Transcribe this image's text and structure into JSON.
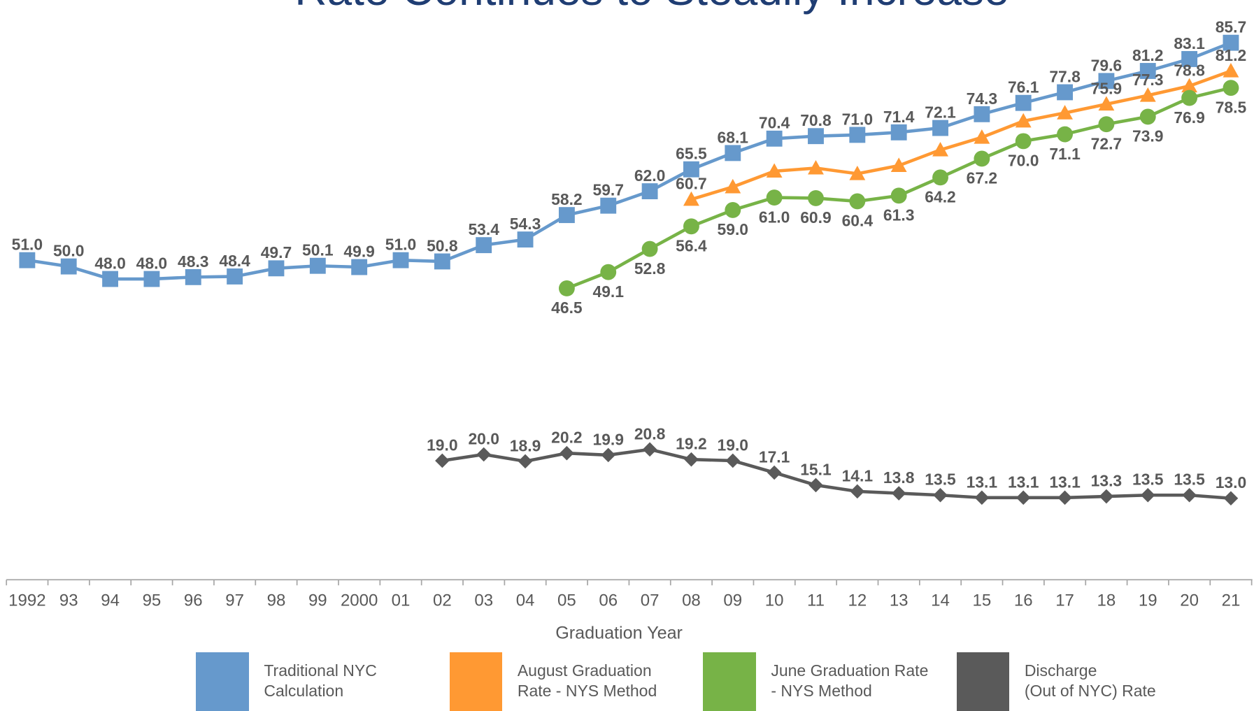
{
  "chart_data": {
    "type": "line",
    "title": "Rate Continues to Steadily Increase",
    "x_label": "Graduation Year",
    "categories": [
      "1992",
      "93",
      "94",
      "95",
      "96",
      "97",
      "98",
      "99",
      "2000",
      "01",
      "02",
      "03",
      "04",
      "05",
      "06",
      "07",
      "08",
      "09",
      "10",
      "11",
      "12",
      "13",
      "14",
      "15",
      "16",
      "17",
      "18",
      "19",
      "20",
      "21"
    ],
    "ylim": [
      0,
      92.5
    ],
    "series": [
      {
        "name": "Traditional NYC\nCalculation",
        "color": "#6699cc",
        "marker": "square",
        "label_position": "above",
        "values": [
          51.0,
          50.0,
          48.0,
          48.0,
          48.3,
          48.4,
          49.7,
          50.1,
          49.9,
          51.0,
          50.8,
          53.4,
          54.3,
          58.2,
          59.7,
          62.0,
          65.5,
          68.1,
          70.4,
          70.8,
          71.0,
          71.4,
          72.1,
          74.3,
          76.1,
          77.8,
          79.6,
          81.2,
          83.1,
          85.7
        ],
        "value_labels": [
          "51.0",
          "50.0",
          "48.0",
          "48.0",
          "48.3",
          "48.4",
          "49.7",
          "50.1",
          "49.9",
          "51.0",
          "50.8",
          "53.4",
          "54.3",
          "58.2",
          "59.7",
          "62.0",
          "65.5",
          "68.1",
          "70.4",
          "70.8",
          "71.0",
          "71.4",
          "72.1",
          "74.3",
          "76.1",
          "77.8",
          "79.6",
          "81.2",
          "83.1",
          "85.7"
        ]
      },
      {
        "name": "August Graduation\nRate - NYS Method",
        "color": "#ff9933",
        "marker": "triangle",
        "label_position": "above",
        "values": [
          null,
          null,
          null,
          null,
          null,
          null,
          null,
          null,
          null,
          null,
          null,
          null,
          null,
          null,
          null,
          null,
          60.7,
          62.7,
          65.2,
          65.7,
          64.8,
          66.1,
          68.6,
          70.6,
          73.2,
          74.5,
          75.9,
          77.3,
          78.8,
          81.2
        ],
        "value_labels": [
          null,
          null,
          null,
          null,
          null,
          null,
          null,
          null,
          null,
          null,
          null,
          null,
          null,
          null,
          null,
          null,
          "60.7",
          null,
          null,
          null,
          null,
          null,
          null,
          null,
          null,
          null,
          "75.9",
          "77.3",
          "78.8",
          "81.2"
        ]
      },
      {
        "name": "June Graduation Rate\n- NYS Method",
        "color": "#77b347",
        "marker": "circle",
        "label_position": "below",
        "values": [
          null,
          null,
          null,
          null,
          null,
          null,
          null,
          null,
          null,
          null,
          null,
          null,
          null,
          46.5,
          49.1,
          52.8,
          56.4,
          59.0,
          61.0,
          60.9,
          60.4,
          61.3,
          64.2,
          67.2,
          70.0,
          71.1,
          72.7,
          73.9,
          76.9,
          78.5
        ],
        "value_labels": [
          null,
          null,
          null,
          null,
          null,
          null,
          null,
          null,
          null,
          null,
          null,
          null,
          null,
          "46.5",
          "49.1",
          "52.8",
          "56.4",
          "59.0",
          "61.0",
          "60.9",
          "60.4",
          "61.3",
          "64.2",
          "67.2",
          "70.0",
          "71.1",
          "72.7",
          "73.9",
          "76.9",
          "78.5"
        ]
      },
      {
        "name": "Discharge\n(Out of NYC) Rate",
        "color": "#5a5a5a",
        "marker": "diamond",
        "label_position": "above",
        "values": [
          null,
          null,
          null,
          null,
          null,
          null,
          null,
          null,
          null,
          null,
          19.0,
          20.0,
          18.9,
          20.2,
          19.9,
          20.8,
          19.2,
          19.0,
          17.1,
          15.1,
          14.1,
          13.8,
          13.5,
          13.1,
          13.1,
          13.1,
          13.3,
          13.5,
          13.5,
          13.0
        ],
        "value_labels": [
          null,
          null,
          null,
          null,
          null,
          null,
          null,
          null,
          null,
          null,
          "19.0",
          "20.0",
          "18.9",
          "20.2",
          "19.9",
          "20.8",
          "19.2",
          "19.0",
          "17.1",
          "15.1",
          "14.1",
          "13.8",
          "13.5",
          "13.1",
          "13.1",
          "13.1",
          "13.3",
          "13.5",
          "13.5",
          "13.0"
        ]
      }
    ]
  }
}
